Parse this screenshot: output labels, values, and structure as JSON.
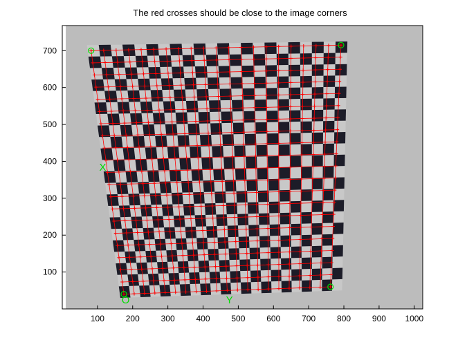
{
  "chart_data": {
    "type": "image-overlay",
    "title": "The red crosses should be close to the image corners",
    "xlim": [
      0,
      1024
    ],
    "ylim": [
      768,
      0
    ],
    "xticks": [
      100,
      200,
      300,
      400,
      500,
      600,
      700,
      800,
      900,
      1000
    ],
    "yticks": [
      100,
      200,
      300,
      400,
      500,
      600,
      700
    ],
    "image_extent": {
      "x": [
        10,
        1024
      ],
      "y": [
        -20,
        775
      ]
    },
    "board_corners": {
      "top_left": [
        165,
        30
      ],
      "top_right": [
        795,
        50
      ],
      "bottom_right": [
        810,
        725
      ],
      "bottom_left": [
        70,
        715
      ]
    },
    "checker_grid": {
      "cols": 22,
      "rows": 22
    },
    "extracted_corners": {
      "top_left": [
        175,
        40
      ],
      "top_right": [
        762,
        60
      ],
      "bottom_right": [
        792,
        715
      ],
      "bottom_left": [
        82,
        700
      ]
    },
    "corner_labels": {
      "origin": "O",
      "x_axis": "X",
      "y_axis": "Y"
    },
    "origin_label_at": [
      180,
      15
    ],
    "x_label_at": [
      115,
      375
    ],
    "y_label_at": [
      475,
      15
    ],
    "colors": {
      "background": "#bcbcbc",
      "board_light": "#c8c8c8",
      "board_dark": "#1c1c28",
      "cross": "#ff0000",
      "marker": "#00dd00",
      "axes": "#000000"
    }
  }
}
